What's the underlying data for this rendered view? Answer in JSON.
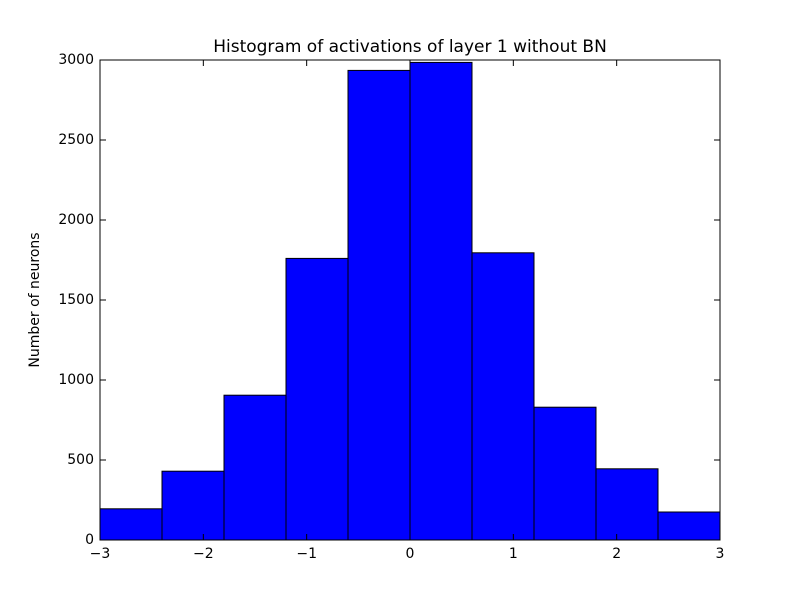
{
  "chart_data": {
    "type": "histogram",
    "title": "Histogram of activations of layer 1  without BN",
    "ylabel": "Number of neurons",
    "bins": [
      -3,
      -2.4,
      -1.8,
      -1.2,
      -0.6,
      0,
      0.6,
      1.2,
      1.8,
      2.4,
      3
    ],
    "values": [
      195,
      430,
      905,
      1760,
      2935,
      2985,
      1795,
      830,
      445,
      175
    ],
    "color": "#0000ff",
    "xlim": [
      -3,
      3
    ],
    "xticks": [
      {
        "value": -3,
        "label": "−3"
      },
      {
        "value": -2,
        "label": "−2"
      },
      {
        "value": -1,
        "label": "−1"
      },
      0,
      1,
      2,
      3
    ],
    "ylim": [
      0,
      3000
    ],
    "yticks": [
      0,
      500,
      1000,
      1500,
      2000,
      2500,
      3000
    ]
  }
}
